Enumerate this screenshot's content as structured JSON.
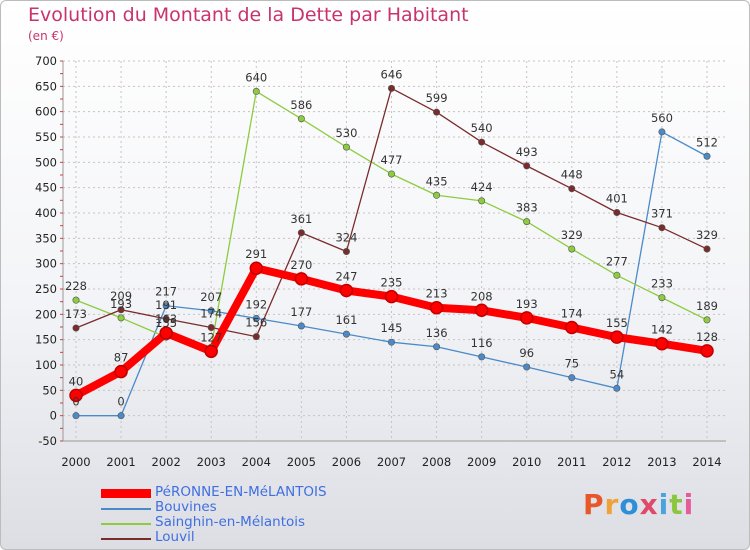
{
  "header": {
    "title": "Evolution du Montant de la Dette par Habitant",
    "subtitle": "(en €)"
  },
  "logo": {
    "text": "Proxiti",
    "colors": [
      "#e8572a",
      "#f0a23a",
      "#2e8fd8",
      "#e04a6a",
      "#4aa3df",
      "#8cc63f",
      "#e85a9a"
    ]
  },
  "chart_data": {
    "type": "line",
    "title": "Evolution du Montant de la Dette par Habitant",
    "subtitle": "(en €)",
    "x": [
      "2000",
      "2001",
      "2002",
      "2003",
      "2004",
      "2005",
      "2006",
      "2007",
      "2008",
      "2009",
      "2010",
      "2011",
      "2012",
      "2013",
      "2014"
    ],
    "ylim": [
      -50,
      700
    ],
    "yticks": [
      -50,
      0,
      50,
      100,
      150,
      200,
      250,
      300,
      350,
      400,
      450,
      500,
      550,
      600,
      650,
      700
    ],
    "grid": true,
    "legend_position": "bottom-left",
    "series": [
      {
        "name": "Bouvines",
        "color": "#4b8ac9",
        "width": 1.3,
        "values": [
          0,
          0,
          217,
          207,
          192,
          177,
          161,
          145,
          136,
          116,
          96,
          75,
          54,
          560,
          512
        ],
        "labels": [
          "0",
          "0",
          "217",
          "207",
          "192",
          "177",
          "161",
          "145",
          "136",
          "116",
          "96",
          "75",
          "54",
          "560",
          "512"
        ]
      },
      {
        "name": "Sainghin-en-Mélantois",
        "color": "#8ccc3e",
        "width": 1.3,
        "values": [
          228,
          193,
          155,
          135,
          640,
          586,
          530,
          477,
          435,
          424,
          383,
          329,
          277,
          233,
          189
        ],
        "labels": [
          "228",
          "193",
          "155",
          "",
          "640",
          "586",
          "530",
          "477",
          "435",
          "424",
          "383",
          "329",
          "277",
          "233",
          "189"
        ]
      },
      {
        "name": "Louvil",
        "color": "#7a2c2c",
        "width": 1.3,
        "values": [
          173,
          209,
          191,
          174,
          156,
          361,
          324,
          646,
          599,
          540,
          493,
          448,
          401,
          371,
          329
        ],
        "labels": [
          "173",
          "209",
          "191",
          "174",
          "156",
          "361",
          "324",
          "646",
          "599",
          "540",
          "493",
          "448",
          "401",
          "371",
          "329"
        ]
      },
      {
        "name": "PéRONNE-EN-MéLANTOIS",
        "color": "#ff0000",
        "width": 8,
        "values": [
          40,
          87,
          163,
          127,
          291,
          270,
          247,
          235,
          213,
          208,
          193,
          174,
          155,
          142,
          128
        ],
        "labels": [
          "40",
          "87",
          "163",
          "127",
          "291",
          "270",
          "247",
          "235",
          "213",
          "208",
          "193",
          "174",
          "155",
          "142",
          "128"
        ]
      }
    ]
  },
  "legend": [
    {
      "label": "PéRONNE-EN-MéLANTOIS",
      "color": "#ff0000",
      "thickness": 9
    },
    {
      "label": "Bouvines",
      "color": "#4b8ac9",
      "thickness": 2
    },
    {
      "label": "Sainghin-en-Mélantois",
      "color": "#8ccc3e",
      "thickness": 2
    },
    {
      "label": "Louvil",
      "color": "#7a2c2c",
      "thickness": 2
    }
  ]
}
